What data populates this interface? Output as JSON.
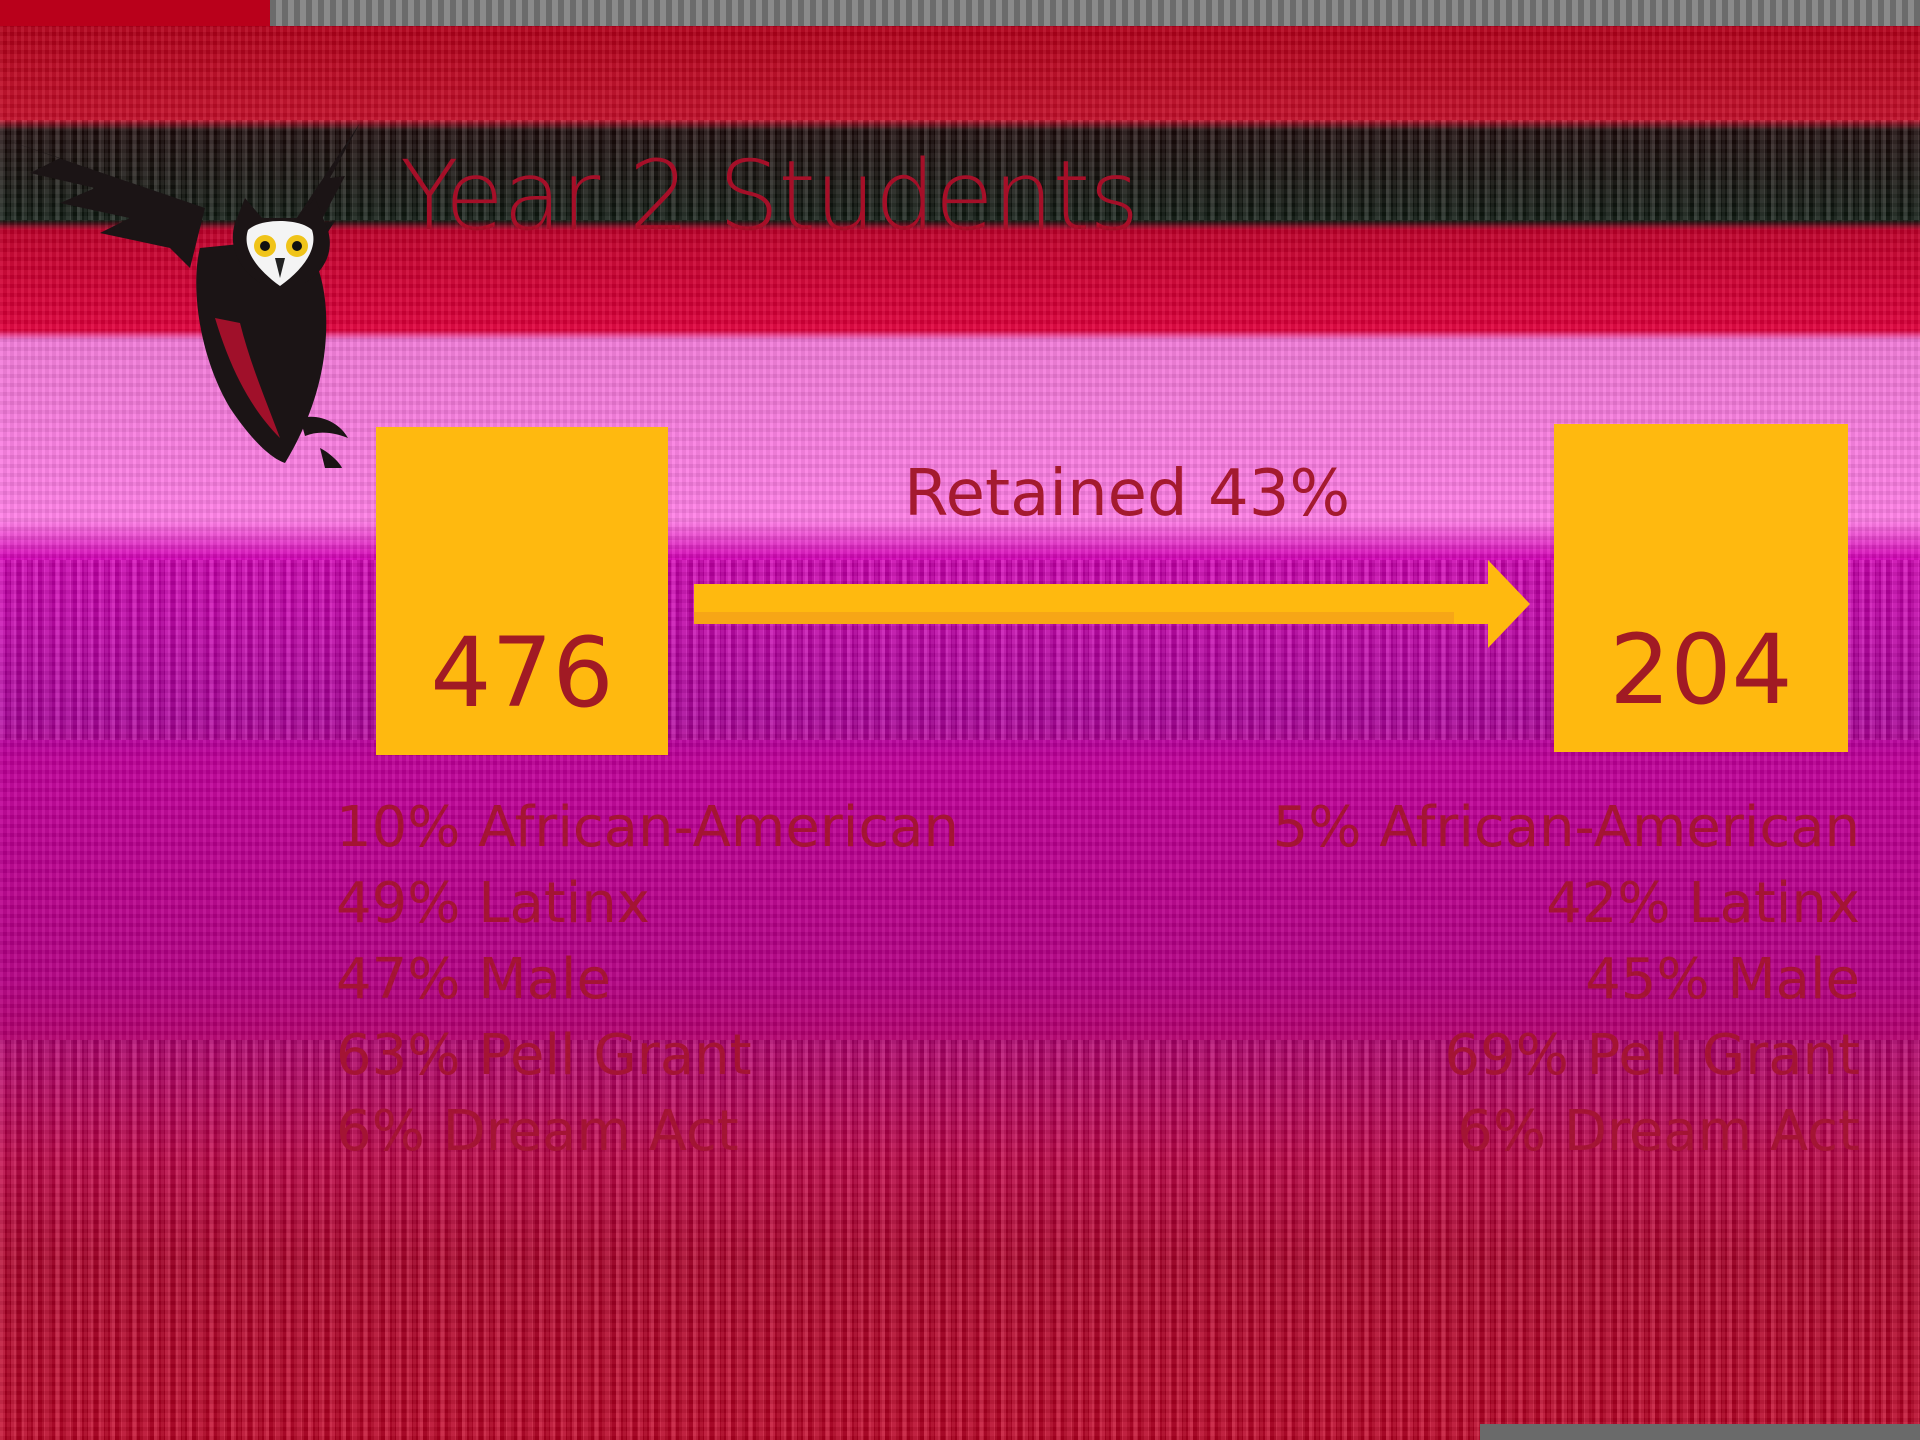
{
  "slide": {
    "title": "Year 2 Students",
    "retention_label": "Retained 43%",
    "start": {
      "count": "476",
      "stats": [
        "10% African-American",
        "49% Latinx",
        "47% Male",
        "63% Pell Grant",
        "6% Dream Act"
      ]
    },
    "end": {
      "count": "204",
      "stats": [
        "5% African-American",
        "42% Latinx",
        "45% Male",
        "69% Pell Grant",
        "6% Dream Act"
      ]
    },
    "colors": {
      "accent": "#ffb90f",
      "text": "#a50f28"
    },
    "logo_icon": "owl-logo-icon",
    "arrow_icon": "right-arrow-icon"
  }
}
